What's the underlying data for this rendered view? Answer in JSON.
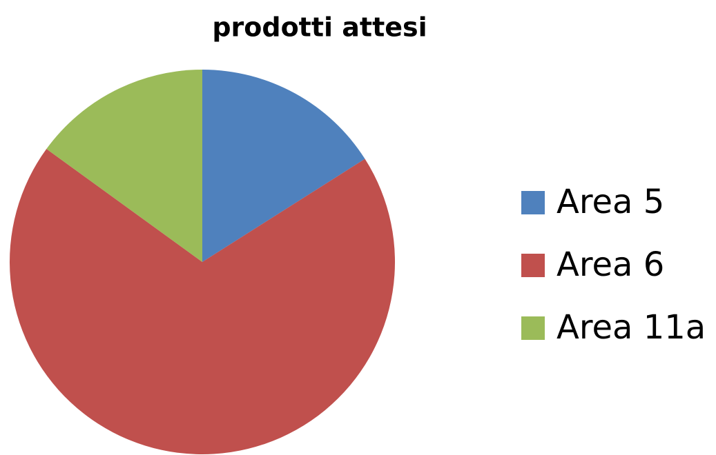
{
  "chart_data": {
    "type": "pie",
    "title": "prodotti attesi",
    "categories": [
      "Area 5",
      "Area 6",
      "Area 11a"
    ],
    "values": [
      16,
      69,
      15
    ],
    "colors": [
      "#4f81bd",
      "#c0504d",
      "#9bbb59"
    ],
    "legend": "right"
  }
}
